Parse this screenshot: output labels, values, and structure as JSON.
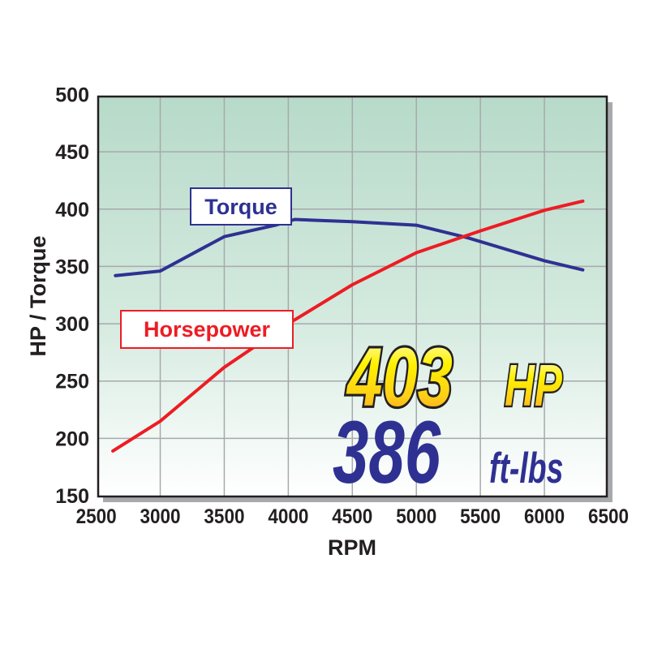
{
  "chart_data": {
    "type": "line",
    "title": "",
    "xlabel": "RPM",
    "ylabel": "HP / Torque",
    "xlim": [
      2500,
      6500
    ],
    "ylim": [
      150,
      500
    ],
    "xticks": [
      2500,
      3000,
      3500,
      4000,
      4500,
      5000,
      5500,
      6000,
      6500
    ],
    "yticks": [
      150,
      200,
      250,
      300,
      350,
      400,
      450,
      500
    ],
    "grid": true,
    "series": [
      {
        "name": "Torque",
        "color": "#2e3192",
        "x": [
          2650,
          3000,
          3500,
          3900,
          4050,
          4500,
          5000,
          5400,
          6000,
          6300
        ],
        "values": [
          342,
          346,
          376,
          386,
          391,
          389,
          386,
          375,
          355,
          347
        ]
      },
      {
        "name": "Horsepower",
        "color": "#ed1c24",
        "x": [
          2630,
          3000,
          3500,
          4000,
          4500,
          5000,
          5500,
          6000,
          6300
        ],
        "values": [
          189,
          215,
          262,
          300,
          334,
          362,
          381,
          399,
          407
        ]
      }
    ],
    "annotations": {
      "hp_value": "403",
      "hp_unit": "HP",
      "torque_value": "386",
      "torque_unit": "ft-lbs"
    }
  }
}
